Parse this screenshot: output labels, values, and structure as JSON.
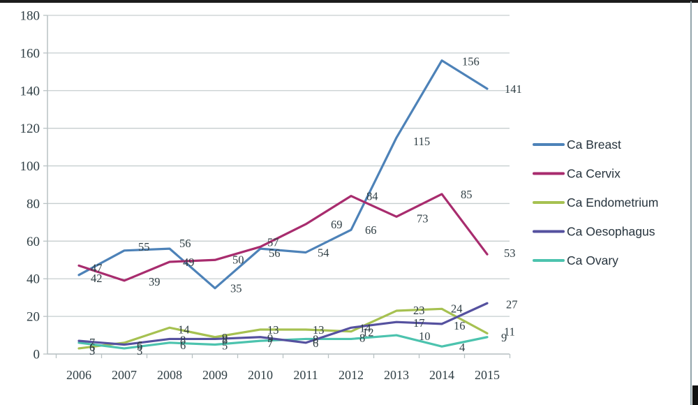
{
  "chart_data": {
    "type": "line",
    "title": "",
    "xlabel": "",
    "ylabel": "",
    "x_categories": [
      "2006",
      "2007",
      "2008",
      "2009",
      "2010",
      "2011",
      "2012",
      "2013",
      "2014",
      "2015"
    ],
    "y_ticks": [
      0,
      20,
      40,
      60,
      80,
      100,
      120,
      140,
      160,
      180
    ],
    "ylim": [
      0,
      180
    ],
    "grid": "horizontal",
    "legend_position": "right",
    "series": [
      {
        "name": "Ca Breast",
        "color": "#4d82b8",
        "values": [
          42,
          55,
          56,
          35,
          56,
          54,
          66,
          115,
          156,
          141
        ],
        "label_offsets": [
          [
            17,
            10
          ],
          [
            20,
            0
          ],
          [
            14,
            -2
          ],
          [
            22,
            6
          ],
          [
            12,
            12
          ],
          [
            17,
            6
          ],
          [
            20,
            6
          ],
          [
            24,
            11
          ],
          [
            29,
            7
          ],
          [
            25,
            6
          ]
        ]
      },
      {
        "name": "Ca Cervix",
        "color": "#a82c6e",
        "values": [
          47,
          39,
          49,
          50,
          57,
          69,
          84,
          73,
          85,
          53
        ],
        "label_offsets": [
          [
            17,
            9
          ],
          [
            35,
            7
          ],
          [
            19,
            6
          ],
          [
            25,
            5
          ],
          [
            10,
            -1
          ],
          [
            36,
            6
          ],
          [
            22,
            6
          ],
          [
            29,
            8
          ],
          [
            27,
            6
          ],
          [
            24,
            4
          ]
        ]
      },
      {
        "name": "Ca Endometrium",
        "color": "#a6c151",
        "values": [
          3,
          6,
          14,
          9,
          13,
          13,
          12,
          23,
          24,
          11
        ],
        "label_offsets": [
          [
            15,
            9
          ],
          [
            18,
            9
          ],
          [
            12,
            8
          ],
          [
            10,
            6
          ],
          [
            10,
            6
          ],
          [
            10,
            6
          ],
          [
            16,
            7
          ],
          [
            24,
            5
          ],
          [
            13,
            5
          ],
          [
            24,
            3
          ]
        ]
      },
      {
        "name": "Ca Ovary",
        "color": "#4cc3ae",
        "values": [
          6,
          3,
          6,
          5,
          7,
          8,
          8,
          10,
          4,
          9
        ],
        "label_offsets": [
          [
            15,
            12
          ],
          [
            18,
            9
          ],
          [
            15,
            9
          ],
          [
            10,
            7
          ],
          [
            10,
            9
          ],
          [
            10,
            6
          ],
          [
            12,
            4
          ],
          [
            32,
            7
          ],
          [
            25,
            7
          ],
          [
            20,
            6
          ]
        ]
      },
      {
        "name": "Ca Oesophagus",
        "color": "#55519f",
        "values": [
          7,
          5,
          8,
          8,
          9,
          6,
          14,
          17,
          16,
          27
        ],
        "label_offsets": [
          [
            15,
            8
          ],
          [
            18,
            8
          ],
          [
            15,
            7
          ],
          [
            10,
            7
          ],
          [
            10,
            7
          ],
          [
            10,
            6
          ],
          [
            12,
            6
          ],
          [
            24,
            7
          ],
          [
            17,
            8
          ],
          [
            27,
            7
          ]
        ]
      }
    ],
    "legend_order": [
      "Ca Breast",
      "Ca Cervix",
      "Ca Endometrium",
      "Ca Oesophagus",
      "Ca Ovary"
    ]
  },
  "decor": {
    "grid_color": "#c6cecf",
    "axis_color": "#b9c2c4",
    "text_color": "#2f3e44"
  }
}
